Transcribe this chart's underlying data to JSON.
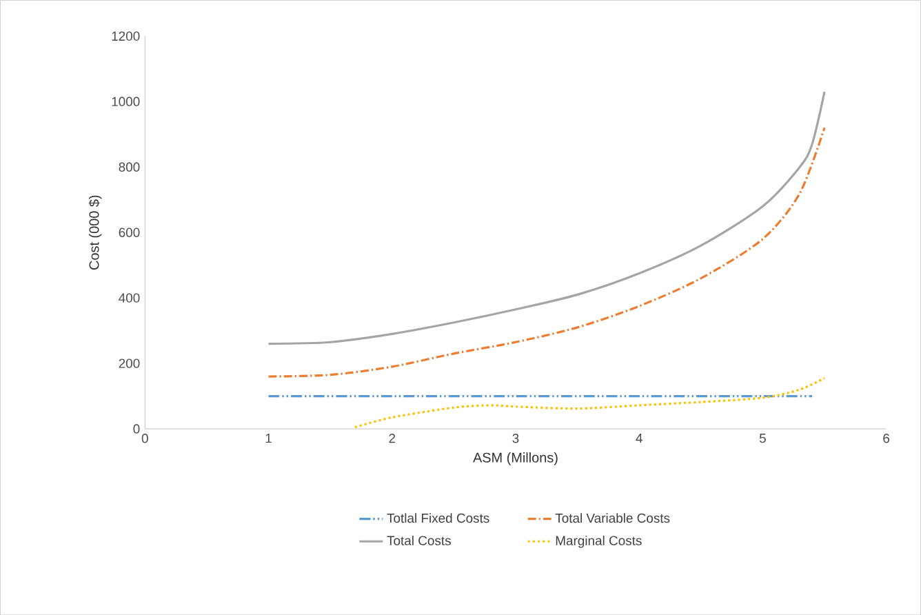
{
  "chart_data": {
    "type": "line",
    "xlabel": "ASM (Millons)",
    "ylabel": "Cost (000 $)",
    "xlim": [
      0,
      6
    ],
    "xticks": [
      0,
      1,
      2,
      3,
      4,
      5,
      6
    ],
    "ylim": [
      0,
      1200
    ],
    "yticks": [
      0,
      200,
      400,
      600,
      800,
      1000,
      1200
    ],
    "grid": false,
    "legend": "bottom",
    "marker": "none",
    "series": [
      {
        "name": "Totlal Fixed Costs",
        "color": "#5b9bd5",
        "line_style": "dashdotdotted",
        "x": [
          1,
          2,
          3,
          4,
          5,
          5.4
        ],
        "values": [
          100,
          100,
          100,
          100,
          100,
          100
        ]
      },
      {
        "name": "Total Variable Costs",
        "color": "#ed7d31",
        "line_style": "dashdotted",
        "x": [
          1,
          1.5,
          2,
          2.5,
          3,
          3.5,
          4,
          4.5,
          5,
          5.3,
          5.5
        ],
        "values": [
          160,
          165,
          190,
          230,
          265,
          310,
          375,
          460,
          580,
          720,
          920
        ]
      },
      {
        "name": "Total Costs",
        "color": "#a5a5a5",
        "line_style": "solid",
        "x": [
          1,
          1.5,
          2,
          2.5,
          3,
          3.5,
          4,
          4.5,
          5,
          5.3,
          5.4,
          5.5
        ],
        "values": [
          260,
          265,
          290,
          325,
          365,
          410,
          475,
          560,
          680,
          800,
          870,
          1030
        ]
      },
      {
        "name": "Marginal Costs",
        "color": "#ffc000",
        "line_style": "dotted",
        "x": [
          1.7,
          2,
          2.5,
          2.8,
          3,
          3.5,
          4,
          4.5,
          5,
          5.3,
          5.5
        ],
        "values": [
          5,
          35,
          65,
          72,
          68,
          62,
          72,
          82,
          95,
          120,
          155
        ]
      }
    ]
  }
}
